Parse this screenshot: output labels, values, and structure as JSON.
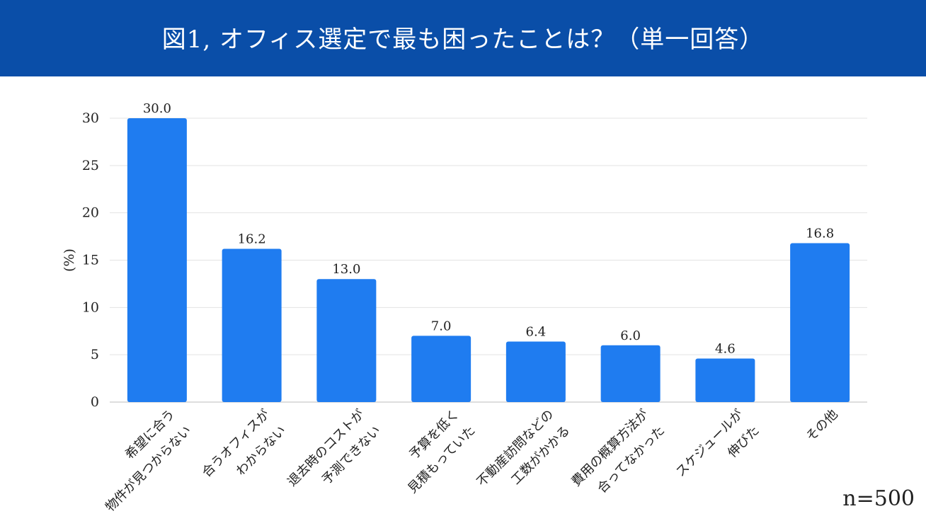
{
  "header": {
    "title": "図1, オフィス選定で最も困ったことは？（単一回答）"
  },
  "sample_note": "n=500",
  "colors": {
    "header_bg": "#0a4ea8",
    "bar": "#1f7cf0",
    "grid": "#e3e3e3"
  },
  "chart_data": {
    "type": "bar",
    "title": "図1, オフィス選定で最も困ったことは？（単一回答）",
    "ylabel": "(%)",
    "ylim": [
      0,
      30
    ],
    "yticks": [
      0,
      5,
      10,
      15,
      20,
      25,
      30
    ],
    "grid": true,
    "categories": [
      [
        "希望に合う",
        "物件が見つからない"
      ],
      [
        "合うオフィスが",
        "わからない"
      ],
      [
        "退去時のコストが",
        "予測できない"
      ],
      [
        "予算を低く",
        "見積もっていた"
      ],
      [
        "不動産訪問などの",
        "工数がかかる"
      ],
      [
        "費用の概算方法が",
        "合ってなかった"
      ],
      [
        "スケジュールが",
        "伸びた"
      ],
      [
        "その他"
      ]
    ],
    "values": [
      30.0,
      16.2,
      13.0,
      7.0,
      6.4,
      6.0,
      4.6,
      16.8
    ],
    "value_labels": [
      "30.0",
      "16.2",
      "13.0",
      "7.0",
      "6.4",
      "6.0",
      "4.6",
      "16.8"
    ]
  }
}
